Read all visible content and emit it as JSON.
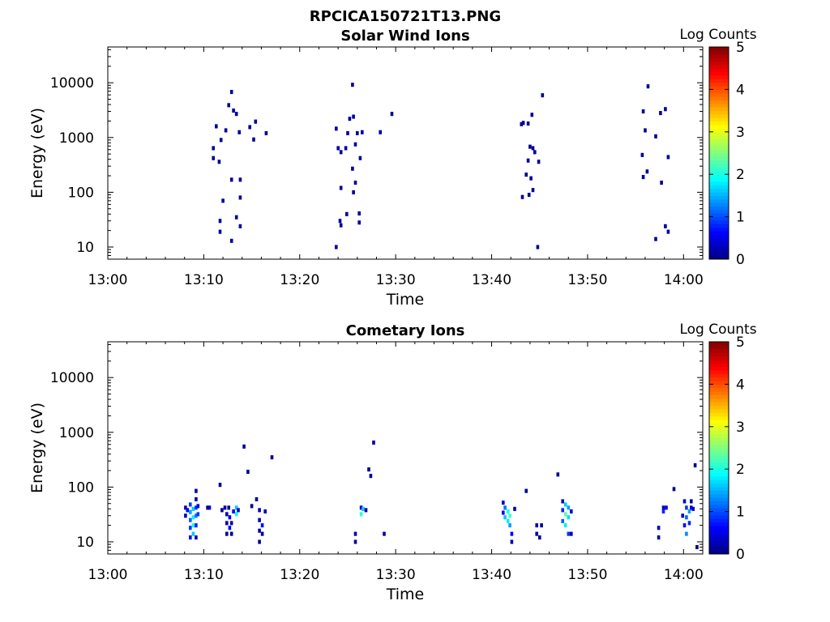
{
  "figure_title": "RPCICA150721T13.PNG",
  "colors": {
    "background": "#ffffff",
    "axis": "#000000"
  },
  "chart_data": [
    {
      "type": "heatmap",
      "title": "Solar Wind Ions",
      "xlabel": "Time",
      "ylabel": "Energy (eV)",
      "y_scale": "log",
      "ylim": [
        6,
        45000
      ],
      "xlim_minutes": [
        0,
        62
      ],
      "x_ticks": [
        "13:00",
        "13:10",
        "13:20",
        "13:30",
        "13:40",
        "13:50",
        "14:00"
      ],
      "y_ticks": [
        "10",
        "100",
        "1000",
        "10000"
      ],
      "colorbar": {
        "label": "Log Counts",
        "ticks": [
          "0",
          "1",
          "2",
          "3",
          "4",
          "5"
        ],
        "range": [
          0,
          5
        ],
        "colormap": "jet"
      },
      "grid": false,
      "cells": [
        [
          11.0,
          640,
          0.1
        ],
        [
          11.0,
          420,
          0.1
        ],
        [
          11.3,
          1600,
          0.1
        ],
        [
          11.6,
          360,
          0.1
        ],
        [
          11.8,
          900,
          0.1
        ],
        [
          12.0,
          70,
          0.1
        ],
        [
          12.3,
          1350,
          0.1
        ],
        [
          12.6,
          3900,
          0.1
        ],
        [
          12.9,
          6800,
          0.1
        ],
        [
          13.1,
          3100,
          0.1
        ],
        [
          13.4,
          2700,
          0.1
        ],
        [
          13.7,
          1250,
          0.1
        ],
        [
          12.9,
          170,
          0.1
        ],
        [
          13.8,
          170,
          0.1
        ],
        [
          13.8,
          80,
          0.1
        ],
        [
          14.8,
          1550,
          0.1
        ],
        [
          15.2,
          920,
          0.1
        ],
        [
          15.4,
          1950,
          0.1
        ],
        [
          16.5,
          1200,
          0.1
        ],
        [
          11.7,
          30,
          0.15
        ],
        [
          11.7,
          19,
          0.15
        ],
        [
          12.9,
          13,
          0.15
        ],
        [
          13.4,
          35,
          0.15
        ],
        [
          13.8,
          24,
          0.15
        ],
        [
          23.8,
          1450,
          0.1
        ],
        [
          24.0,
          640,
          0.1
        ],
        [
          24.3,
          540,
          0.1
        ],
        [
          24.8,
          640,
          0.1
        ],
        [
          25.0,
          1200,
          0.1
        ],
        [
          25.2,
          2200,
          0.1
        ],
        [
          25.5,
          9200,
          0.1
        ],
        [
          25.6,
          2400,
          0.1
        ],
        [
          25.8,
          750,
          0.1
        ],
        [
          26.0,
          1200,
          0.1
        ],
        [
          26.3,
          420,
          0.1
        ],
        [
          26.5,
          1250,
          0.1
        ],
        [
          25.5,
          270,
          0.1
        ],
        [
          25.8,
          150,
          0.1
        ],
        [
          24.3,
          120,
          0.1
        ],
        [
          25.6,
          100,
          0.1
        ],
        [
          28.4,
          1250,
          0.1
        ],
        [
          29.6,
          2700,
          0.1
        ],
        [
          24.2,
          30,
          0.15
        ],
        [
          24.3,
          25,
          0.15
        ],
        [
          24.9,
          40,
          0.15
        ],
        [
          26.2,
          41,
          0.15
        ],
        [
          26.2,
          28,
          0.15
        ],
        [
          23.8,
          10,
          0.15
        ],
        [
          43.1,
          1750,
          0.1
        ],
        [
          43.3,
          1850,
          0.1
        ],
        [
          43.8,
          1800,
          0.1
        ],
        [
          44.2,
          2600,
          0.1
        ],
        [
          45.3,
          5900,
          0.1
        ],
        [
          44.0,
          680,
          0.1
        ],
        [
          44.3,
          640,
          0.1
        ],
        [
          44.5,
          540,
          0.1
        ],
        [
          44.9,
          360,
          0.1
        ],
        [
          43.8,
          380,
          0.1
        ],
        [
          43.6,
          210,
          0.1
        ],
        [
          44.1,
          180,
          0.1
        ],
        [
          43.2,
          82,
          0.1
        ],
        [
          43.9,
          90,
          0.1
        ],
        [
          44.3,
          110,
          0.1
        ],
        [
          44.8,
          10,
          0.15
        ],
        [
          55.8,
          3000,
          0.1
        ],
        [
          56.3,
          8600,
          0.1
        ],
        [
          56.0,
          1350,
          0.1
        ],
        [
          57.1,
          1050,
          0.1
        ],
        [
          57.6,
          2800,
          0.1
        ],
        [
          58.1,
          3300,
          0.1
        ],
        [
          55.7,
          480,
          0.1
        ],
        [
          56.2,
          240,
          0.1
        ],
        [
          57.7,
          150,
          0.1
        ],
        [
          55.8,
          190,
          0.1
        ],
        [
          58.4,
          440,
          0.1
        ],
        [
          57.1,
          14,
          0.15
        ],
        [
          58.1,
          24,
          0.15
        ],
        [
          58.4,
          19,
          0.15
        ]
      ]
    },
    {
      "type": "heatmap",
      "title": "Cometary Ions",
      "xlabel": "Time",
      "ylabel": "Energy (eV)",
      "y_scale": "log",
      "ylim": [
        6,
        45000
      ],
      "xlim_minutes": [
        0,
        62
      ],
      "x_ticks": [
        "13:00",
        "13:10",
        "13:20",
        "13:30",
        "13:40",
        "13:50",
        "14:00"
      ],
      "y_ticks": [
        "10",
        "100",
        "1000",
        "10000"
      ],
      "colorbar": {
        "label": "Log Counts",
        "ticks": [
          "0",
          "1",
          "2",
          "3",
          "4",
          "5"
        ],
        "range": [
          0,
          5
        ],
        "colormap": "jet"
      },
      "grid": false,
      "cells": [
        [
          8.1,
          42,
          0.2
        ],
        [
          8.1,
          30,
          0.3
        ],
        [
          8.3,
          38,
          0.6
        ],
        [
          8.6,
          48,
          0.9
        ],
        [
          8.6,
          35,
          1.4
        ],
        [
          8.6,
          25,
          1.1
        ],
        [
          8.6,
          18,
          0.9
        ],
        [
          8.6,
          12,
          0.7
        ],
        [
          8.9,
          40,
          1.6
        ],
        [
          8.9,
          28,
          1.8
        ],
        [
          8.9,
          20,
          2.0
        ],
        [
          8.9,
          14,
          1.6
        ],
        [
          9.2,
          85,
          0.2
        ],
        [
          9.2,
          60,
          0.3
        ],
        [
          9.2,
          42,
          0.9
        ],
        [
          9.2,
          30,
          1.2
        ],
        [
          9.2,
          20,
          0.8
        ],
        [
          9.2,
          12,
          0.3
        ],
        [
          9.4,
          45,
          0.5
        ],
        [
          9.4,
          32,
          0.9
        ],
        [
          10.4,
          42,
          0.1
        ],
        [
          10.6,
          42,
          0.3
        ],
        [
          11.7,
          110,
          0.1
        ],
        [
          11.9,
          38,
          0.1
        ],
        [
          12.2,
          42,
          0.15
        ],
        [
          12.4,
          32,
          0.3
        ],
        [
          12.4,
          22,
          0.2
        ],
        [
          12.4,
          14,
          0.1
        ],
        [
          12.6,
          42,
          0.2
        ],
        [
          12.7,
          28,
          0.4
        ],
        [
          12.7,
          18,
          0.6
        ],
        [
          12.9,
          22,
          0.3
        ],
        [
          12.9,
          14,
          0.1
        ],
        [
          13.1,
          36,
          0.6
        ],
        [
          13.4,
          42,
          1.6
        ],
        [
          13.4,
          32,
          1.9
        ],
        [
          13.6,
          38,
          0.4
        ],
        [
          14.2,
          550,
          0.1
        ],
        [
          14.6,
          190,
          0.1
        ],
        [
          15.0,
          45,
          0.1
        ],
        [
          15.5,
          60,
          0.15
        ],
        [
          15.8,
          38,
          0.3
        ],
        [
          15.8,
          25,
          0.2
        ],
        [
          15.8,
          16,
          0.1
        ],
        [
          15.8,
          10,
          0.1
        ],
        [
          16.1,
          20,
          0.7
        ],
        [
          16.1,
          14,
          0.2
        ],
        [
          16.4,
          36,
          0.2
        ],
        [
          17.1,
          350,
          0.1
        ],
        [
          25.8,
          14,
          0.2
        ],
        [
          25.8,
          10,
          0.1
        ],
        [
          26.4,
          42,
          0.5
        ],
        [
          26.4,
          32,
          2.1
        ],
        [
          26.6,
          40,
          1.6
        ],
        [
          26.9,
          38,
          0.2
        ],
        [
          27.2,
          210,
          0.1
        ],
        [
          27.4,
          160,
          0.1
        ],
        [
          27.7,
          650,
          0.1
        ],
        [
          28.8,
          14,
          0.2
        ],
        [
          41.2,
          52,
          0.3
        ],
        [
          41.2,
          34,
          0.6
        ],
        [
          41.4,
          42,
          1.2
        ],
        [
          41.4,
          28,
          1.6
        ],
        [
          41.7,
          36,
          1.9
        ],
        [
          41.7,
          24,
          1.8
        ],
        [
          41.9,
          30,
          2.2
        ],
        [
          41.9,
          20,
          1.4
        ],
        [
          42.1,
          14,
          0.6
        ],
        [
          42.1,
          10,
          0.2
        ],
        [
          42.4,
          40,
          0.2
        ],
        [
          43.6,
          85,
          0.1
        ],
        [
          44.7,
          20,
          0.3
        ],
        [
          44.7,
          14,
          0.2
        ],
        [
          45.0,
          12,
          0.1
        ],
        [
          45.2,
          20,
          0.1
        ],
        [
          46.9,
          170,
          0.1
        ],
        [
          47.4,
          55,
          0.3
        ],
        [
          47.4,
          38,
          0.8
        ],
        [
          47.4,
          24,
          1.1
        ],
        [
          47.7,
          48,
          1.6
        ],
        [
          47.7,
          32,
          2.3
        ],
        [
          47.7,
          20,
          1.8
        ],
        [
          48.0,
          42,
          1.4
        ],
        [
          48.0,
          28,
          1.7
        ],
        [
          48.0,
          14,
          0.9
        ],
        [
          48.3,
          36,
          0.5
        ],
        [
          48.3,
          14,
          0.3
        ],
        [
          57.4,
          18,
          0.3
        ],
        [
          57.4,
          12,
          0.2
        ],
        [
          57.9,
          42,
          0.4
        ],
        [
          57.9,
          36,
          0.8
        ],
        [
          58.2,
          42,
          0.6
        ],
        [
          59.0,
          92,
          0.1
        ],
        [
          59.9,
          30,
          0.4
        ],
        [
          60.1,
          55,
          0.3
        ],
        [
          60.1,
          20,
          0.6
        ],
        [
          60.3,
          42,
          0.9
        ],
        [
          60.3,
          28,
          1.1
        ],
        [
          60.3,
          14,
          1.3
        ],
        [
          60.6,
          36,
          1.4
        ],
        [
          60.6,
          22,
          0.8
        ],
        [
          60.8,
          42,
          0.6
        ],
        [
          60.8,
          55,
          0.2
        ],
        [
          61.0,
          40,
          0.3
        ],
        [
          61.2,
          250,
          0.1
        ],
        [
          61.4,
          8,
          0.1
        ]
      ]
    }
  ]
}
